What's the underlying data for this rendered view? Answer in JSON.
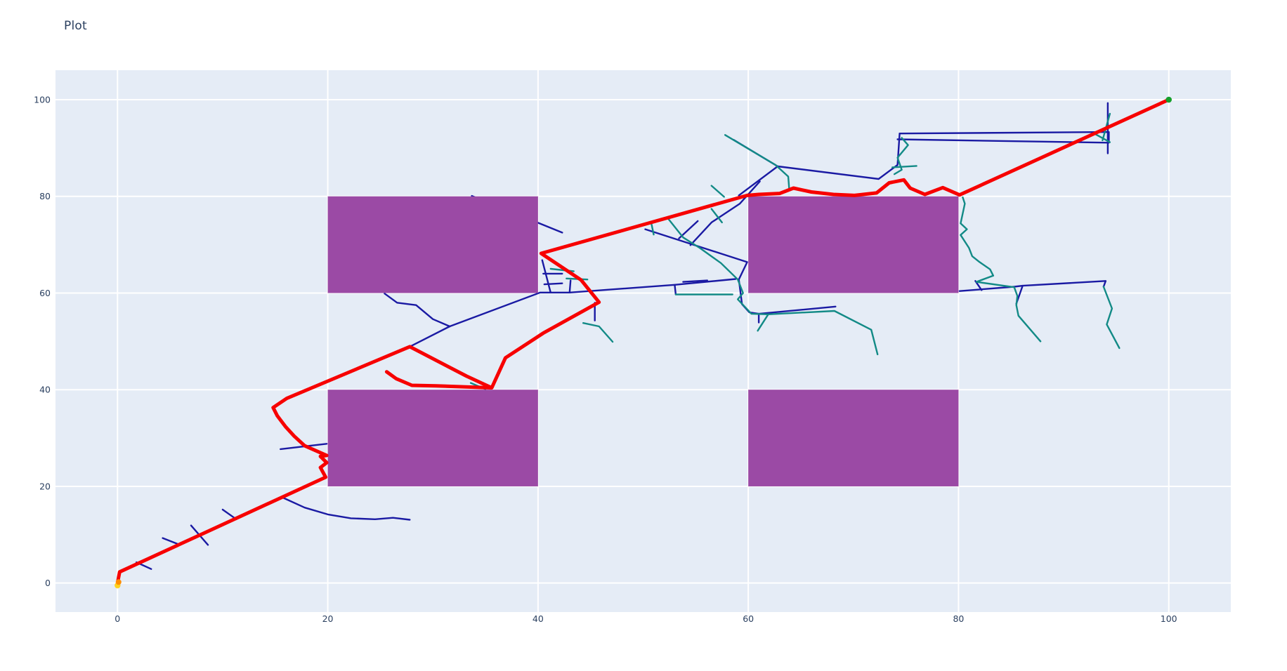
{
  "page": {
    "title_label": "Plot"
  },
  "chart_data": {
    "type": "scatter",
    "title": "Plot",
    "xlabel": "",
    "ylabel": "",
    "xlim": [
      -5.9,
      105.9
    ],
    "ylim": [
      -6.0,
      106.1
    ],
    "x_ticks": [
      "0",
      "20",
      "40",
      "60",
      "80",
      "100"
    ],
    "x_tick_values": [
      0,
      20,
      40,
      60,
      80,
      100
    ],
    "y_ticks": [
      "0",
      "20",
      "40",
      "60",
      "80",
      "100"
    ],
    "y_tick_values": [
      0,
      20,
      40,
      60,
      80,
      100
    ],
    "grid": true,
    "legend": false,
    "plot_bgcolor": "#e5ecf6",
    "grid_color": "#ffffff",
    "tick_color": "#2a3f5f",
    "obstacles": {
      "color": "#9b4aa5",
      "rects": [
        {
          "x0": 20,
          "y0": 20,
          "x1": 40,
          "y1": 40
        },
        {
          "x0": 60,
          "y0": 20,
          "x1": 80,
          "y1": 40
        },
        {
          "x0": 20,
          "y0": 60,
          "x1": 40,
          "y1": 80
        },
        {
          "x0": 60,
          "y0": 60,
          "x1": 80,
          "y1": 80
        }
      ]
    },
    "tree_edges": [
      {
        "name": "tree-branch-navy",
        "color": "#1a1aa3",
        "width": 2.4,
        "polylines": [
          [
            [
              4.3,
              9.3
            ],
            [
              5.7,
              8.1
            ]
          ],
          [
            [
              7.0,
              11.9
            ],
            [
              8.6,
              7.9
            ]
          ],
          [
            [
              10.0,
              15.2
            ],
            [
              11.3,
              13.2
            ]
          ],
          [
            [
              1.8,
              4.3
            ],
            [
              3.2,
              2.9
            ]
          ],
          [
            [
              15.5,
              27.7
            ],
            [
              19.9,
              28.8
            ]
          ],
          [
            [
              15.8,
              17.6
            ],
            [
              17.8,
              15.6
            ],
            [
              20.0,
              14.2
            ],
            [
              22.2,
              13.4
            ],
            [
              24.5,
              13.2
            ],
            [
              26.2,
              13.5
            ],
            [
              27.8,
              13.1
            ]
          ],
          [
            [
              25.4,
              59.9
            ],
            [
              26.6,
              58.0
            ],
            [
              28.4,
              57.5
            ],
            [
              30.0,
              54.6
            ],
            [
              31.6,
              53.1
            ]
          ],
          [
            [
              31.6,
              53.1
            ],
            [
              27.8,
              48.9
            ]
          ],
          [
            [
              31.6,
              53.1
            ],
            [
              40.2,
              60.1
            ],
            [
              43.0,
              60.1
            ],
            [
              53.0,
              61.7
            ],
            [
              53.1,
              59.7
            ]
          ],
          [
            [
              43.0,
              60.1
            ],
            [
              43.1,
              62.6
            ]
          ],
          [
            [
              53.0,
              61.7
            ],
            [
              58.8,
              62.9
            ]
          ],
          [
            [
              50.2,
              73.2
            ],
            [
              59.9,
              66.4
            ],
            [
              59.1,
              62.8
            ],
            [
              59.2,
              61.1
            ],
            [
              59.4,
              57.7
            ],
            [
              60.1,
              56.0
            ],
            [
              61.0,
              55.7
            ],
            [
              61.0,
              53.9
            ]
          ],
          [
            [
              61.0,
              55.7
            ],
            [
              68.3,
              57.2
            ]
          ],
          [
            [
              45.4,
              58.0
            ],
            [
              45.4,
              54.3
            ]
          ],
          [
            [
              40.4,
              66.8
            ],
            [
              41.2,
              60.1
            ]
          ],
          [
            [
              40.5,
              64.0
            ],
            [
              42.3,
              64.0
            ]
          ],
          [
            [
              40.6,
              61.8
            ],
            [
              42.3,
              62.0
            ]
          ],
          [
            [
              58.6,
              91.7
            ],
            [
              62.8,
              86.2
            ],
            [
              72.4,
              83.6
            ],
            [
              74.2,
              86.5
            ]
          ],
          [
            [
              62.8,
              86.2
            ],
            [
              59.1,
              80.2
            ]
          ],
          [
            [
              74.4,
              93.0
            ],
            [
              94.3,
              93.3
            ],
            [
              94.3,
              91.1
            ],
            [
              74.2,
              91.8
            ]
          ],
          [
            [
              74.4,
              93.0
            ],
            [
              74.2,
              86.5
            ]
          ],
          [
            [
              94.2,
              99.3
            ],
            [
              94.2,
              88.9
            ]
          ],
          [
            [
              80.1,
              60.4
            ],
            [
              85.3,
              61.3
            ],
            [
              86.1,
              61.5
            ],
            [
              85.5,
              57.8
            ]
          ],
          [
            [
              81.6,
              62.5
            ],
            [
              82.2,
              60.6
            ]
          ],
          [
            [
              86.1,
              61.5
            ],
            [
              94.0,
              62.5
            ],
            [
              93.8,
              61.3
            ]
          ],
          [
            [
              33.7,
              80.1
            ],
            [
              42.3,
              72.5
            ]
          ],
          [
            [
              61.1,
              83.1
            ],
            [
              59.2,
              78.5
            ],
            [
              56.5,
              74.6
            ],
            [
              54.5,
              69.9
            ]
          ],
          [
            [
              55.2,
              74.9
            ],
            [
              53.4,
              71.3
            ]
          ],
          [
            [
              53.8,
              62.3
            ],
            [
              56.1,
              62.6
            ]
          ]
        ]
      },
      {
        "name": "tree-branch-teal",
        "color": "#128a86",
        "width": 2.4,
        "polylines": [
          [
            [
              57.8,
              92.7
            ],
            [
              62.6,
              86.5
            ],
            [
              63.8,
              84.1
            ],
            [
              63.9,
              81.4
            ]
          ],
          [
            [
              52.3,
              75.6
            ],
            [
              53.8,
              71.5
            ],
            [
              55.4,
              69.3
            ],
            [
              57.4,
              66.2
            ],
            [
              59.0,
              62.8
            ],
            [
              59.5,
              60.0
            ],
            [
              59.0,
              58.7
            ],
            [
              60.3,
              55.7
            ],
            [
              61.9,
              55.6
            ]
          ],
          [
            [
              53.1,
              59.7
            ],
            [
              58.5,
              59.7
            ]
          ],
          [
            [
              61.9,
              55.6
            ],
            [
              68.2,
              56.3
            ],
            [
              71.7,
              52.4
            ],
            [
              72.3,
              47.3
            ]
          ],
          [
            [
              61.9,
              55.6
            ],
            [
              60.9,
              52.2
            ]
          ],
          [
            [
              44.3,
              53.8
            ],
            [
              45.8,
              53.1
            ],
            [
              47.1,
              49.9
            ]
          ],
          [
            [
              41.2,
              65.0
            ],
            [
              43.4,
              64.5
            ]
          ],
          [
            [
              42.7,
              63.0
            ],
            [
              44.7,
              62.8
            ]
          ],
          [
            [
              50.8,
              74.2
            ],
            [
              51.0,
              72.1
            ]
          ],
          [
            [
              56.5,
              82.2
            ],
            [
              57.7,
              79.9
            ]
          ],
          [
            [
              80.4,
              79.8
            ],
            [
              80.6,
              78.5
            ],
            [
              80.2,
              74.4
            ],
            [
              80.8,
              73.2
            ],
            [
              80.2,
              72.0
            ],
            [
              81.0,
              69.3
            ],
            [
              81.3,
              67.6
            ],
            [
              82.0,
              66.4
            ],
            [
              83.0,
              64.9
            ],
            [
              83.3,
              63.6
            ]
          ],
          [
            [
              83.3,
              63.6
            ],
            [
              81.7,
              62.3
            ],
            [
              85.3,
              61.2
            ],
            [
              85.6,
              59.4
            ],
            [
              85.5,
              57.5
            ],
            [
              85.7,
              55.3
            ],
            [
              87.8,
              50.0
            ]
          ],
          [
            [
              92.9,
              93.0
            ],
            [
              94.4,
              91.2
            ]
          ],
          [
            [
              94.4,
              97.1
            ],
            [
              93.7,
              91.6
            ]
          ],
          [
            [
              93.8,
              61.3
            ],
            [
              94.6,
              56.8
            ],
            [
              94.1,
              53.5
            ],
            [
              95.3,
              48.6
            ]
          ],
          [
            [
              74.6,
              92.1
            ],
            [
              75.2,
              90.6
            ],
            [
              74.2,
              88.0
            ],
            [
              74.6,
              85.5
            ],
            [
              73.9,
              84.6
            ]
          ],
          [
            [
              73.7,
              86.0
            ],
            [
              76.0,
              86.3
            ]
          ],
          [
            [
              33.6,
              41.4
            ],
            [
              35.0,
              40.1
            ]
          ],
          [
            [
              56.5,
              77.4
            ],
            [
              57.5,
              74.6
            ]
          ]
        ]
      }
    ],
    "path": {
      "name": "solution-path",
      "color": "#f70000",
      "width": 5,
      "polylines": [
        [
          [
            0.0,
            0.0
          ],
          [
            0.2,
            2.3
          ],
          [
            19.8,
            21.9
          ],
          [
            19.3,
            23.9
          ],
          [
            19.9,
            24.9
          ],
          [
            19.3,
            26.2
          ],
          [
            19.9,
            26.4
          ],
          [
            17.8,
            28.4
          ],
          [
            16.8,
            30.4
          ],
          [
            16.0,
            32.3
          ],
          [
            15.2,
            34.6
          ],
          [
            14.8,
            36.3
          ],
          [
            16.1,
            38.2
          ],
          [
            27.8,
            48.9
          ],
          [
            33.2,
            42.8
          ],
          [
            35.6,
            40.4
          ],
          [
            36.9,
            46.6
          ],
          [
            40.5,
            51.7
          ],
          [
            45.8,
            58.1
          ],
          [
            44.1,
            62.7
          ],
          [
            40.3,
            68.2
          ],
          [
            59.9,
            80.2
          ],
          [
            61.0,
            80.4
          ],
          [
            63.0,
            80.6
          ],
          [
            64.3,
            81.7
          ],
          [
            66.0,
            80.9
          ],
          [
            68.1,
            80.4
          ],
          [
            70.1,
            80.2
          ],
          [
            72.2,
            80.7
          ],
          [
            73.4,
            82.8
          ],
          [
            74.8,
            83.4
          ],
          [
            75.4,
            81.7
          ],
          [
            76.8,
            80.4
          ],
          [
            78.5,
            81.8
          ],
          [
            80.1,
            80.3
          ],
          [
            100.0,
            100.0
          ]
        ],
        [
          [
            25.6,
            43.7
          ],
          [
            26.5,
            42.3
          ],
          [
            28.0,
            40.9
          ],
          [
            30.3,
            40.8
          ],
          [
            35.5,
            40.4
          ]
        ]
      ]
    },
    "markers": [
      {
        "name": "start-point-outer",
        "x": 0.0,
        "y": -0.5,
        "r": 4.2,
        "color": "#ffd21e"
      },
      {
        "name": "start-point",
        "x": 0.1,
        "y": 0.2,
        "r": 4.0,
        "color": "#ff8c00"
      },
      {
        "name": "goal-point",
        "x": 100.0,
        "y": 100.0,
        "r": 4.3,
        "color": "#16a02c"
      }
    ]
  }
}
